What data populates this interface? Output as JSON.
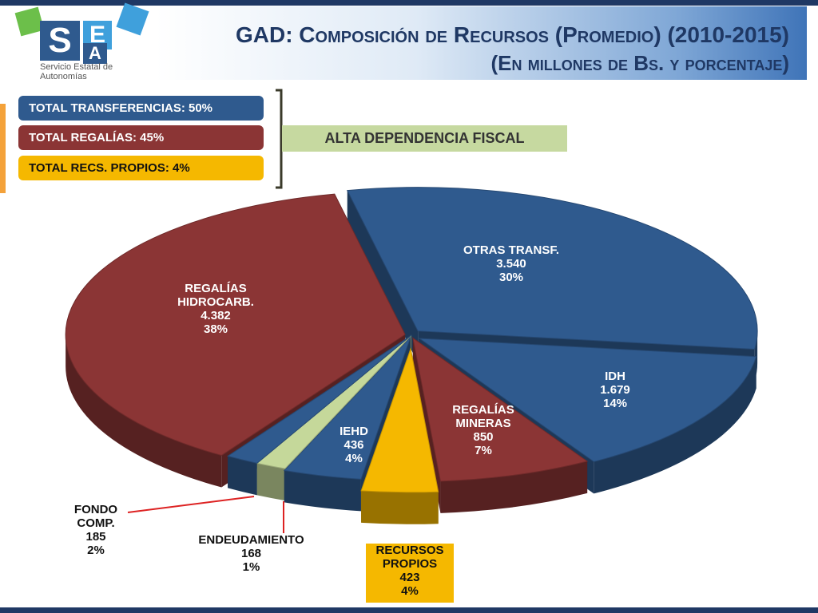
{
  "header": {
    "logo_letters": [
      "S",
      "E",
      "A"
    ],
    "logo_text": "Servicio Estatal de Autonomías",
    "title": "GAD: Composición de Recursos (Promedio) (2010-2015)",
    "subtitle": "(En millones de Bs. y porcentaje)"
  },
  "summary": {
    "items": [
      "TOTAL TRANSFERENCIAS:  50%",
      "TOTAL REGALÍAS:  45%",
      "TOTAL RECS. PROPIOS:  4%"
    ],
    "note": "ALTA DEPENDENCIA FISCAL"
  },
  "chart_data": {
    "type": "pie",
    "categories": [
      "OTRAS TRANSF.",
      "IDH",
      "REGALÍAS MINERAS",
      "RECURSOS PROPIOS",
      "IEHD",
      "ENDEUDAMIENTO",
      "FONDO COMP.",
      "REGALÍAS HIDROCARB."
    ],
    "values": [
      3540,
      1679,
      850,
      423,
      436,
      168,
      185,
      4382
    ],
    "value_labels": [
      "3.540",
      "1.679",
      "850",
      "423",
      "436",
      "168",
      "185",
      "4.382"
    ],
    "share_labels": [
      "30%",
      "14%",
      "7%",
      "4%",
      "4%",
      "1%",
      "2%",
      "38%"
    ],
    "colors": [
      "#2f5a8e",
      "#2f5a8e",
      "#8b3535",
      "#f5b800",
      "#2f5a8e",
      "#c5d89a",
      "#2f5a8e",
      "#8b3535"
    ]
  }
}
